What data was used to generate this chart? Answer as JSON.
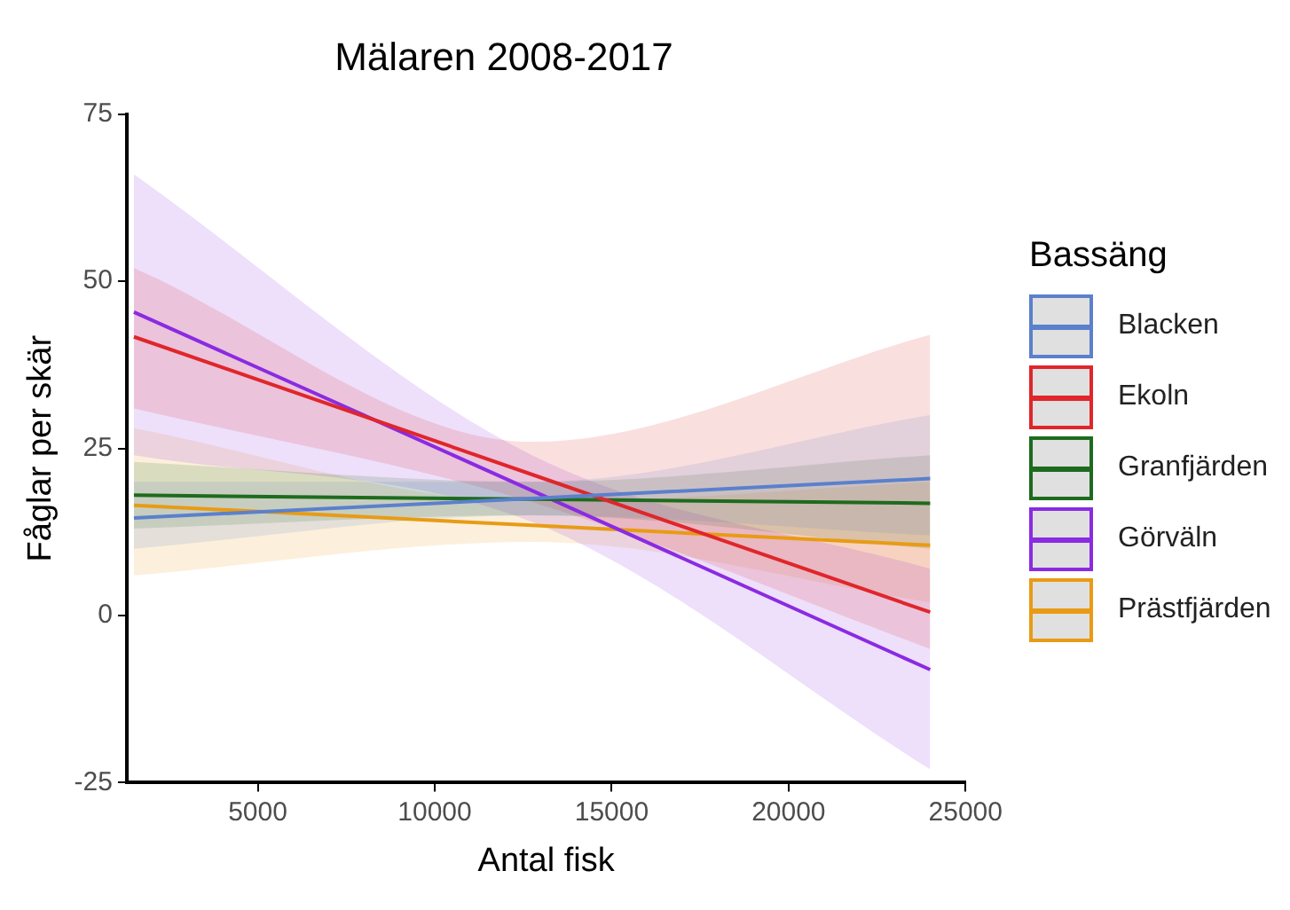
{
  "chart_data": {
    "type": "line",
    "title": "Mälaren 2008-2017",
    "xlabel": "Antal fisk",
    "ylabel": "Fåglar per skär",
    "legend_title": "Bassäng",
    "legend": "right",
    "grid": false,
    "xlim": [
      1300,
      25000
    ],
    "xticks": [
      5000,
      10000,
      15000,
      20000,
      25000
    ],
    "ylim": [
      -25,
      75
    ],
    "yticks": [
      -25,
      0,
      25,
      50,
      75
    ],
    "x": [
      1500,
      12750,
      24000
    ],
    "series": [
      {
        "name": "Blacken",
        "color": "#5b80cc",
        "values": [
          14.6,
          17.5,
          20.5
        ],
        "lower": [
          10,
          15,
          12
        ],
        "upper": [
          20,
          20,
          30
        ]
      },
      {
        "name": "Ekoln",
        "color": "#e0262b",
        "values": [
          41.7,
          21.1,
          0.5
        ],
        "lower": [
          31,
          17,
          -5
        ],
        "upper": [
          52,
          26,
          42
        ]
      },
      {
        "name": "Granfjärden",
        "color": "#1e6b1e",
        "values": [
          18,
          17.4,
          16.8
        ],
        "lower": [
          13,
          15,
          10
        ],
        "upper": [
          23,
          20,
          24
        ]
      },
      {
        "name": "Görväln",
        "color": "#8a2be2",
        "values": [
          45.4,
          18.7,
          -8.1
        ],
        "lower": [
          24,
          14,
          -23
        ],
        "upper": [
          66,
          24,
          7
        ]
      },
      {
        "name": "Prästfjärden",
        "color": "#e89b14",
        "values": [
          16.5,
          13.5,
          10.5
        ],
        "lower": [
          6,
          11,
          2
        ],
        "upper": [
          28,
          17,
          20
        ]
      }
    ]
  }
}
